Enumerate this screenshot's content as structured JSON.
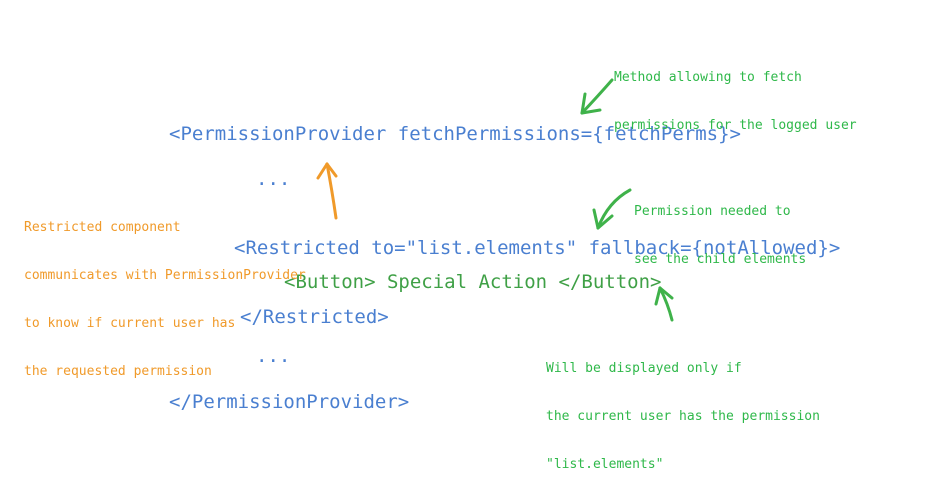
{
  "code": {
    "provider_open": "<PermissionProvider fetchPermissions={fetchPerms}>",
    "ellipsis_1": "...",
    "restricted_open": "<Restricted to=\"list.elements\" fallback={notAllowed}>",
    "button_line": "<Button> Special Action </Button>",
    "restricted_close": "</Restricted>",
    "ellipsis_2": "...",
    "provider_close": "</PermissionProvider>"
  },
  "annotations": {
    "fetch_method": [
      "Method allowing to fetch",
      "permissions for the logged user"
    ],
    "restricted_component": [
      "Restricted component",
      "communicates with PermissionProvider",
      "to know if current user has",
      "the requested permission"
    ],
    "permission_needed": [
      "Permission needed to",
      "see the child elements"
    ],
    "displayed_only": [
      "Will be displayed only if",
      "the current user has the permission",
      "\"list.elements\""
    ]
  },
  "colors": {
    "code_blue": "#4a7fd0",
    "code_green": "#3fa046",
    "note_green": "#2fb84a",
    "note_orange": "#f09a2a"
  }
}
